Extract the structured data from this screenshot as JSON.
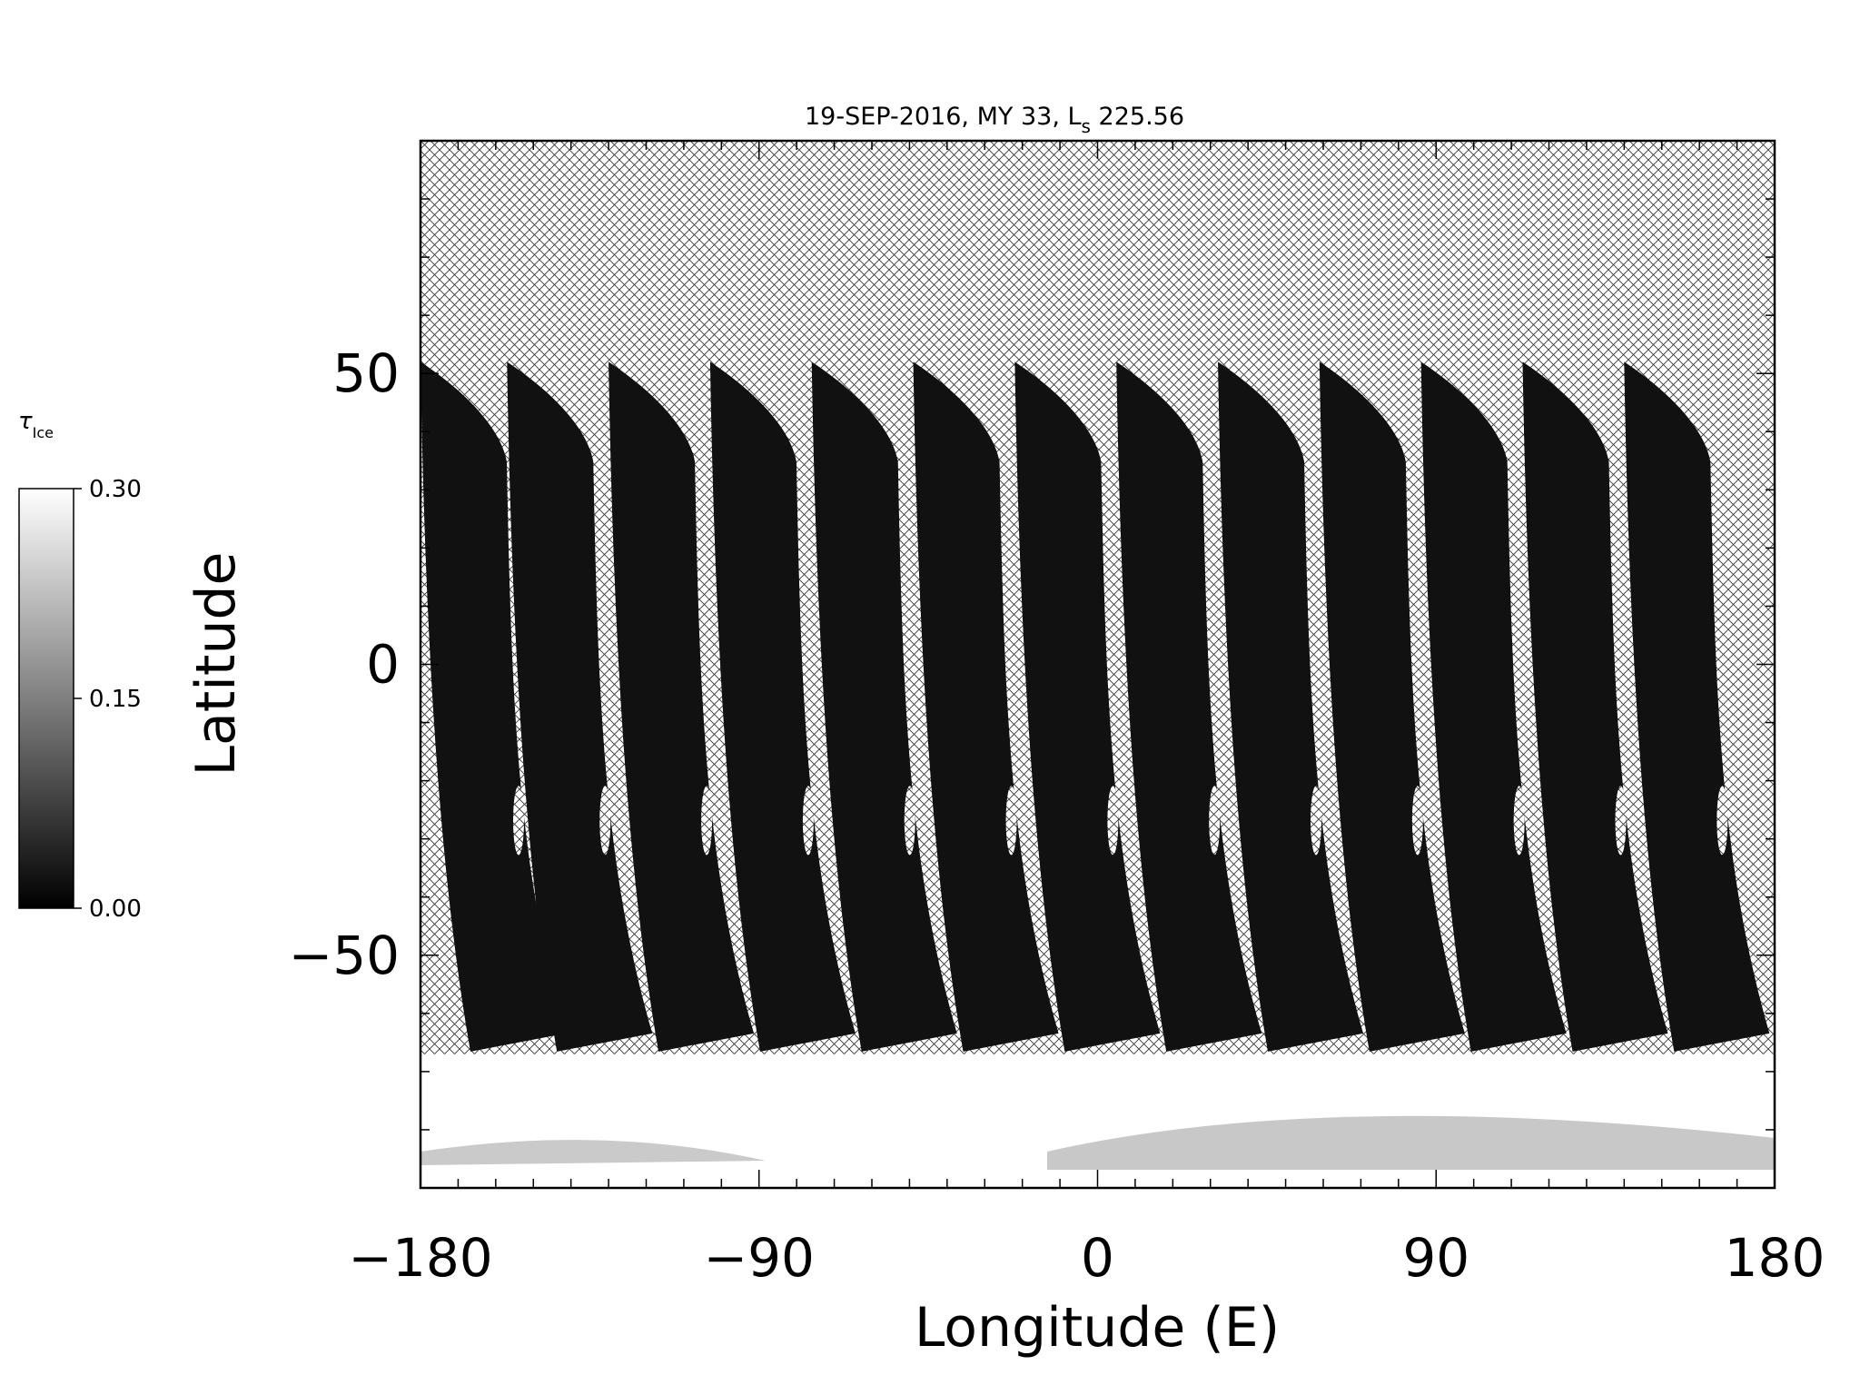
{
  "chart_data": {
    "type": "heatmap",
    "title": "19-SEP-2016, MY 33,  L",
    "title_subscript": "s",
    "title_suffix": " 225.56",
    "xlabel": "Longitude (E)",
    "ylabel": "Latitude",
    "xlim": [
      -180,
      180
    ],
    "ylim": [
      -90,
      90
    ],
    "x_ticks": [
      -180,
      -90,
      0,
      90,
      180
    ],
    "x_tick_labels": [
      "−180",
      "−90",
      "0",
      "90",
      "180"
    ],
    "y_ticks": [
      -50,
      0,
      50
    ],
    "y_tick_labels": [
      "−50",
      "0",
      "50"
    ],
    "grid": false,
    "missing_data_fill": "crosshatch",
    "colorbar": {
      "title": "τ",
      "title_subscript": "Ice",
      "colormap": "grayscale",
      "min": 0.0,
      "max": 0.3,
      "tick_values": [
        0.0,
        0.15,
        0.3
      ],
      "tick_labels": [
        "0.00",
        "0.15",
        "0.30"
      ],
      "placement": "left"
    },
    "swaths": {
      "count": 13,
      "top_left_lon": [
        -180,
        -157,
        -130,
        -103,
        -76,
        -49,
        -22,
        5,
        32,
        59,
        86,
        113,
        140
      ],
      "top_lat": 52,
      "bottom_lat": -65,
      "polar_cap_lat_top": -67,
      "typical_value": 0.02,
      "polar_cap_value": 0.3
    }
  },
  "colors": {
    "background": "#ffffff",
    "axis": "#000000",
    "swath_dark": "#161616",
    "polar_bright": "#f4f4f4",
    "hatch": "#3a3a3a"
  }
}
